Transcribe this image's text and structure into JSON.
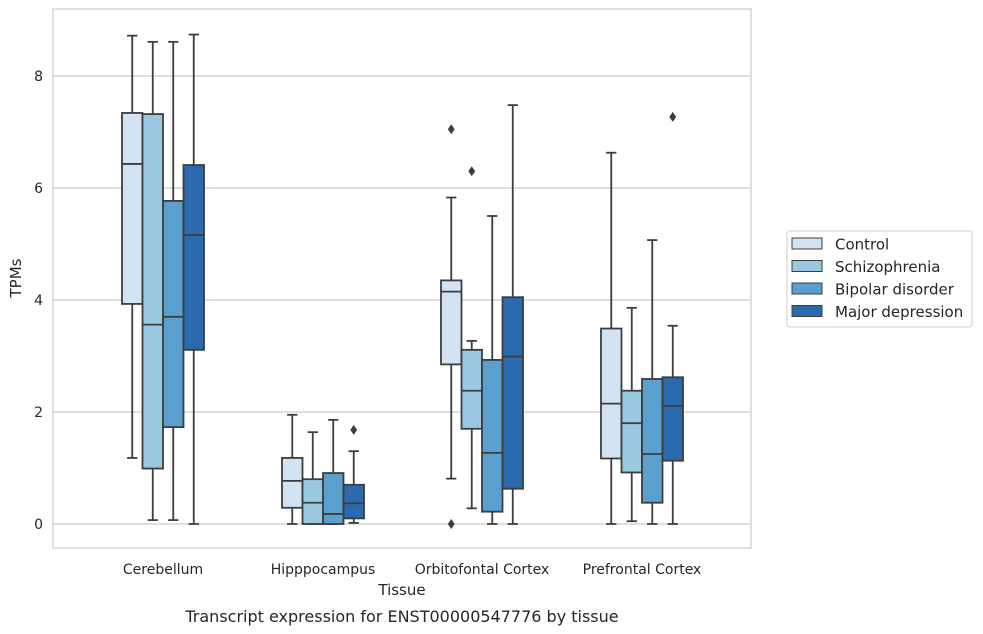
{
  "chart_data": {
    "type": "box",
    "xlabel": "Tissue",
    "ylabel": "TPMs",
    "caption": "Transcript expression for ENST00000547776 by tissue",
    "ylim": [
      -0.42,
      9.3
    ],
    "yticks": [
      0,
      2,
      4,
      6,
      8
    ],
    "grid": "horizontal",
    "legend_position": "right",
    "categories": [
      "Cerebellum",
      "Hipppocampus",
      "Orbitofontal Cortex",
      "Prefrontal Cortex"
    ],
    "series": [
      {
        "name": "Control",
        "color": "#d3e3f3",
        "boxes": [
          {
            "whisker_low": 1.18,
            "q1": 3.93,
            "median": 6.43,
            "q3": 7.34,
            "whisker_high": 8.72,
            "outliers": []
          },
          {
            "whisker_low": 0.0,
            "q1": 0.29,
            "median": 0.77,
            "q3": 1.18,
            "whisker_high": 1.95,
            "outliers": []
          },
          {
            "whisker_low": 0.81,
            "q1": 2.85,
            "median": 4.15,
            "q3": 4.35,
            "whisker_high": 5.83,
            "outliers": [
              0.0,
              7.05
            ]
          },
          {
            "whisker_low": 0.0,
            "q1": 1.17,
            "median": 2.15,
            "q3": 3.49,
            "whisker_high": 6.63,
            "outliers": []
          }
        ]
      },
      {
        "name": "Schizophrenia",
        "color": "#9ac8e0",
        "boxes": [
          {
            "whisker_low": 0.07,
            "q1": 0.99,
            "median": 3.56,
            "q3": 7.32,
            "whisker_high": 8.61,
            "outliers": []
          },
          {
            "whisker_low": 0.0,
            "q1": 0.0,
            "median": 0.38,
            "q3": 0.8,
            "whisker_high": 1.64,
            "outliers": []
          },
          {
            "whisker_low": 0.28,
            "q1": 1.7,
            "median": 2.38,
            "q3": 3.11,
            "whisker_high": 3.27,
            "outliers": [
              6.3
            ]
          },
          {
            "whisker_low": 0.05,
            "q1": 0.92,
            "median": 1.8,
            "q3": 2.38,
            "whisker_high": 3.86,
            "outliers": []
          }
        ]
      },
      {
        "name": "Bipolar disorder",
        "color": "#5a9fcd",
        "boxes": [
          {
            "whisker_low": 0.07,
            "q1": 1.73,
            "median": 3.7,
            "q3": 5.77,
            "whisker_high": 8.61,
            "outliers": []
          },
          {
            "whisker_low": 0.0,
            "q1": 0.0,
            "median": 0.18,
            "q3": 0.91,
            "whisker_high": 1.86,
            "outliers": []
          },
          {
            "whisker_low": 0.0,
            "q1": 0.22,
            "median": 1.27,
            "q3": 2.93,
            "whisker_high": 5.5,
            "outliers": []
          },
          {
            "whisker_low": 0.0,
            "q1": 0.38,
            "median": 1.25,
            "q3": 2.59,
            "whisker_high": 5.07,
            "outliers": []
          }
        ]
      },
      {
        "name": "Major depression",
        "color": "#2a6aad",
        "boxes": [
          {
            "whisker_low": 0.0,
            "q1": 3.11,
            "median": 5.16,
            "q3": 6.41,
            "whisker_high": 8.74,
            "outliers": []
          },
          {
            "whisker_low": 0.02,
            "q1": 0.1,
            "median": 0.37,
            "q3": 0.7,
            "whisker_high": 1.3,
            "outliers": [
              1.68
            ]
          },
          {
            "whisker_low": 0.0,
            "q1": 0.63,
            "median": 2.99,
            "q3": 4.05,
            "whisker_high": 7.48,
            "outliers": []
          },
          {
            "whisker_low": 0.0,
            "q1": 1.13,
            "median": 2.11,
            "q3": 2.62,
            "whisker_high": 3.54,
            "outliers": [
              7.27
            ]
          }
        ]
      }
    ]
  }
}
